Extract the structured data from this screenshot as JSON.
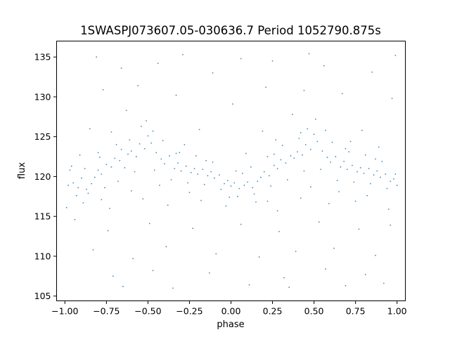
{
  "chart_data": {
    "type": "scatter",
    "title": "1SWASPJ073607.05-030636.7 Period 1052790.875s",
    "xlabel": "phase",
    "ylabel": "flux",
    "xlim": [
      -1.05,
      1.05
    ],
    "ylim": [
      104.4,
      137.0
    ],
    "xticks": [
      -1.0,
      -0.75,
      -0.5,
      -0.25,
      0.0,
      0.25,
      0.5,
      0.75,
      1.0
    ],
    "xtick_labels": [
      "−1.00",
      "−0.75",
      "−0.50",
      "−0.25",
      "0.00",
      "0.25",
      "0.50",
      "0.75",
      "1.00"
    ],
    "yticks": [
      105,
      110,
      115,
      120,
      125,
      130,
      135
    ],
    "ytick_labels": [
      "105",
      "110",
      "115",
      "120",
      "125",
      "130",
      "135"
    ],
    "grid": false,
    "marker_color": "#1f77b4",
    "series": [
      {
        "points": [
          [
            -0.98,
            118.9
          ],
          [
            -0.95,
            119.2
          ],
          [
            -0.92,
            118.6
          ],
          [
            -0.9,
            119.8
          ],
          [
            -0.87,
            118.4
          ],
          [
            -0.84,
            119.1
          ],
          [
            -0.82,
            119.9
          ],
          [
            -0.8,
            120.8
          ],
          [
            -0.78,
            120.3
          ],
          [
            -0.75,
            121.5
          ],
          [
            -0.72,
            121.2
          ],
          [
            -0.7,
            122.3
          ],
          [
            -0.67,
            122.0
          ],
          [
            -0.64,
            121.1
          ],
          [
            -0.62,
            122.8
          ],
          [
            -0.6,
            123.2
          ],
          [
            -0.57,
            122.5
          ],
          [
            -0.55,
            124.1
          ],
          [
            -0.52,
            123.5
          ],
          [
            -0.5,
            125.1
          ],
          [
            -0.48,
            124.2
          ],
          [
            -0.45,
            123.0
          ],
          [
            -0.42,
            122.2
          ],
          [
            -0.4,
            121.6
          ],
          [
            -0.37,
            122.6
          ],
          [
            -0.34,
            121.0
          ],
          [
            -0.32,
            121.7
          ],
          [
            -0.3,
            120.7
          ],
          [
            -0.27,
            121.3
          ],
          [
            -0.24,
            120.5
          ],
          [
            -0.22,
            121.0
          ],
          [
            -0.2,
            120.3
          ],
          [
            -0.17,
            120.9
          ],
          [
            -0.14,
            120.1
          ],
          [
            -0.12,
            120.6
          ],
          [
            -0.1,
            119.8
          ],
          [
            -0.07,
            120.2
          ],
          [
            -0.04,
            119.1
          ],
          [
            -0.02,
            119.5
          ],
          [
            0.0,
            118.8
          ],
          [
            0.02,
            119.2
          ],
          [
            0.05,
            118.5
          ],
          [
            0.08,
            118.9
          ],
          [
            0.1,
            119.3
          ],
          [
            0.13,
            118.6
          ],
          [
            0.16,
            119.4
          ],
          [
            0.18,
            119.9
          ],
          [
            0.2,
            120.6
          ],
          [
            0.23,
            120.1
          ],
          [
            0.26,
            121.4
          ],
          [
            0.28,
            121.0
          ],
          [
            0.3,
            122.1
          ],
          [
            0.33,
            121.7
          ],
          [
            0.36,
            122.6
          ],
          [
            0.38,
            122.3
          ],
          [
            0.4,
            123.1
          ],
          [
            0.43,
            122.7
          ],
          [
            0.45,
            124.0
          ],
          [
            0.48,
            123.4
          ],
          [
            0.5,
            125.3
          ],
          [
            0.52,
            124.4
          ],
          [
            0.55,
            123.2
          ],
          [
            0.58,
            122.4
          ],
          [
            0.6,
            121.8
          ],
          [
            0.63,
            122.5
          ],
          [
            0.66,
            121.2
          ],
          [
            0.68,
            121.9
          ],
          [
            0.7,
            120.9
          ],
          [
            0.73,
            121.4
          ],
          [
            0.76,
            120.6
          ],
          [
            0.78,
            121.1
          ],
          [
            0.8,
            120.4
          ],
          [
            0.83,
            121.0
          ],
          [
            0.86,
            120.2
          ],
          [
            0.88,
            120.7
          ],
          [
            0.9,
            119.9
          ],
          [
            0.93,
            120.3
          ],
          [
            0.96,
            119.4
          ],
          [
            0.98,
            119.7
          ],
          [
            1.0,
            118.9
          ],
          [
            -0.93,
            117.6
          ],
          [
            -0.86,
            117.9
          ],
          [
            -0.76,
            118.6
          ],
          [
            -0.68,
            119.4
          ],
          [
            -0.58,
            120.6
          ],
          [
            -0.46,
            120.8
          ],
          [
            -0.36,
            119.6
          ],
          [
            -0.26,
            119.2
          ],
          [
            -0.16,
            119.0
          ],
          [
            -0.06,
            118.4
          ],
          [
            0.04,
            117.5
          ],
          [
            0.14,
            117.8
          ],
          [
            0.24,
            118.8
          ],
          [
            0.34,
            119.6
          ],
          [
            0.44,
            120.7
          ],
          [
            0.54,
            120.9
          ],
          [
            0.64,
            119.5
          ],
          [
            0.74,
            119.3
          ],
          [
            0.84,
            119.1
          ],
          [
            0.94,
            118.5
          ],
          [
            -0.97,
            120.8
          ],
          [
            -0.88,
            121.0
          ],
          [
            -0.79,
            122.4
          ],
          [
            -0.69,
            124.0
          ],
          [
            -0.61,
            124.6
          ],
          [
            -0.51,
            127.0
          ],
          [
            -0.41,
            124.5
          ],
          [
            -0.31,
            123.0
          ],
          [
            -0.21,
            122.6
          ],
          [
            -0.11,
            121.8
          ],
          [
            0.03,
            120.7
          ],
          [
            0.12,
            121.2
          ],
          [
            0.22,
            122.5
          ],
          [
            0.31,
            123.9
          ],
          [
            0.41,
            124.8
          ],
          [
            0.51,
            127.2
          ],
          [
            0.61,
            124.3
          ],
          [
            0.71,
            123.1
          ],
          [
            0.81,
            122.7
          ],
          [
            0.91,
            121.9
          ],
          [
            -0.91,
            122.7
          ],
          [
            -0.72,
            125.6
          ],
          [
            -0.54,
            126.3
          ],
          [
            -0.28,
            124.0
          ],
          [
            0.09,
            122.9
          ],
          [
            0.27,
            124.6
          ],
          [
            0.46,
            126.0
          ],
          [
            0.72,
            124.4
          ],
          [
            0.89,
            123.7
          ],
          [
            -0.85,
            126.0
          ],
          [
            -0.63,
            128.3
          ],
          [
            -0.19,
            125.9
          ],
          [
            0.19,
            125.7
          ],
          [
            0.37,
            127.8
          ],
          [
            0.79,
            125.8
          ],
          [
            -0.77,
            130.9
          ],
          [
            -0.56,
            131.4
          ],
          [
            -0.33,
            130.2
          ],
          [
            0.01,
            129.1
          ],
          [
            0.21,
            131.2
          ],
          [
            0.44,
            130.8
          ],
          [
            0.67,
            130.4
          ],
          [
            0.97,
            129.8
          ],
          [
            -0.66,
            133.6
          ],
          [
            -0.44,
            134.2
          ],
          [
            -0.11,
            133.0
          ],
          [
            0.25,
            134.5
          ],
          [
            0.56,
            133.9
          ],
          [
            0.85,
            133.1
          ],
          [
            -0.81,
            135.0
          ],
          [
            -0.29,
            135.3
          ],
          [
            0.06,
            134.8
          ],
          [
            0.47,
            135.4
          ],
          [
            0.99,
            135.2
          ],
          [
            -0.94,
            114.6
          ],
          [
            -0.74,
            113.2
          ],
          [
            -0.49,
            114.1
          ],
          [
            -0.23,
            113.5
          ],
          [
            0.06,
            114.0
          ],
          [
            0.29,
            113.1
          ],
          [
            0.53,
            114.3
          ],
          [
            0.77,
            113.4
          ],
          [
            0.96,
            113.9
          ],
          [
            -0.83,
            110.8
          ],
          [
            -0.59,
            109.7
          ],
          [
            -0.39,
            111.2
          ],
          [
            -0.09,
            110.3
          ],
          [
            0.17,
            109.9
          ],
          [
            0.39,
            110.6
          ],
          [
            0.62,
            111.0
          ],
          [
            0.87,
            110.1
          ],
          [
            -0.71,
            107.5
          ],
          [
            -0.47,
            108.2
          ],
          [
            -0.13,
            107.9
          ],
          [
            0.32,
            107.3
          ],
          [
            0.57,
            108.4
          ],
          [
            0.81,
            107.7
          ],
          [
            -0.65,
            106.2
          ],
          [
            -0.35,
            106.0
          ],
          [
            0.11,
            106.4
          ],
          [
            0.35,
            106.1
          ],
          [
            0.69,
            106.3
          ],
          [
            0.92,
            106.6
          ],
          [
            -0.99,
            116.1
          ],
          [
            -0.89,
            116.7
          ],
          [
            -0.73,
            116.0
          ],
          [
            -0.53,
            117.2
          ],
          [
            -0.38,
            116.4
          ],
          [
            -0.18,
            117.0
          ],
          [
            -0.03,
            116.3
          ],
          [
            0.15,
            116.8
          ],
          [
            0.28,
            115.7
          ],
          [
            0.42,
            117.3
          ],
          [
            0.59,
            116.6
          ],
          [
            0.75,
            116.9
          ],
          [
            0.95,
            115.9
          ],
          [
            -0.78,
            117.1
          ],
          [
            -0.6,
            118.2
          ],
          [
            -0.43,
            118.9
          ],
          [
            -0.25,
            118.0
          ],
          [
            -0.01,
            117.4
          ],
          [
            0.22,
            116.9
          ],
          [
            0.48,
            118.7
          ],
          [
            0.65,
            118.1
          ],
          [
            0.82,
            117.6
          ],
          [
            -0.96,
            121.3
          ],
          [
            -0.8,
            123.0
          ],
          [
            -0.66,
            123.4
          ],
          [
            -0.47,
            125.7
          ],
          [
            -0.33,
            122.9
          ],
          [
            -0.15,
            122.0
          ],
          [
            0.07,
            120.4
          ],
          [
            0.26,
            122.8
          ],
          [
            0.42,
            125.5
          ],
          [
            0.57,
            125.8
          ],
          [
            0.69,
            123.5
          ],
          [
            0.87,
            122.2
          ],
          [
            0.99,
            120.3
          ]
        ]
      }
    ]
  }
}
